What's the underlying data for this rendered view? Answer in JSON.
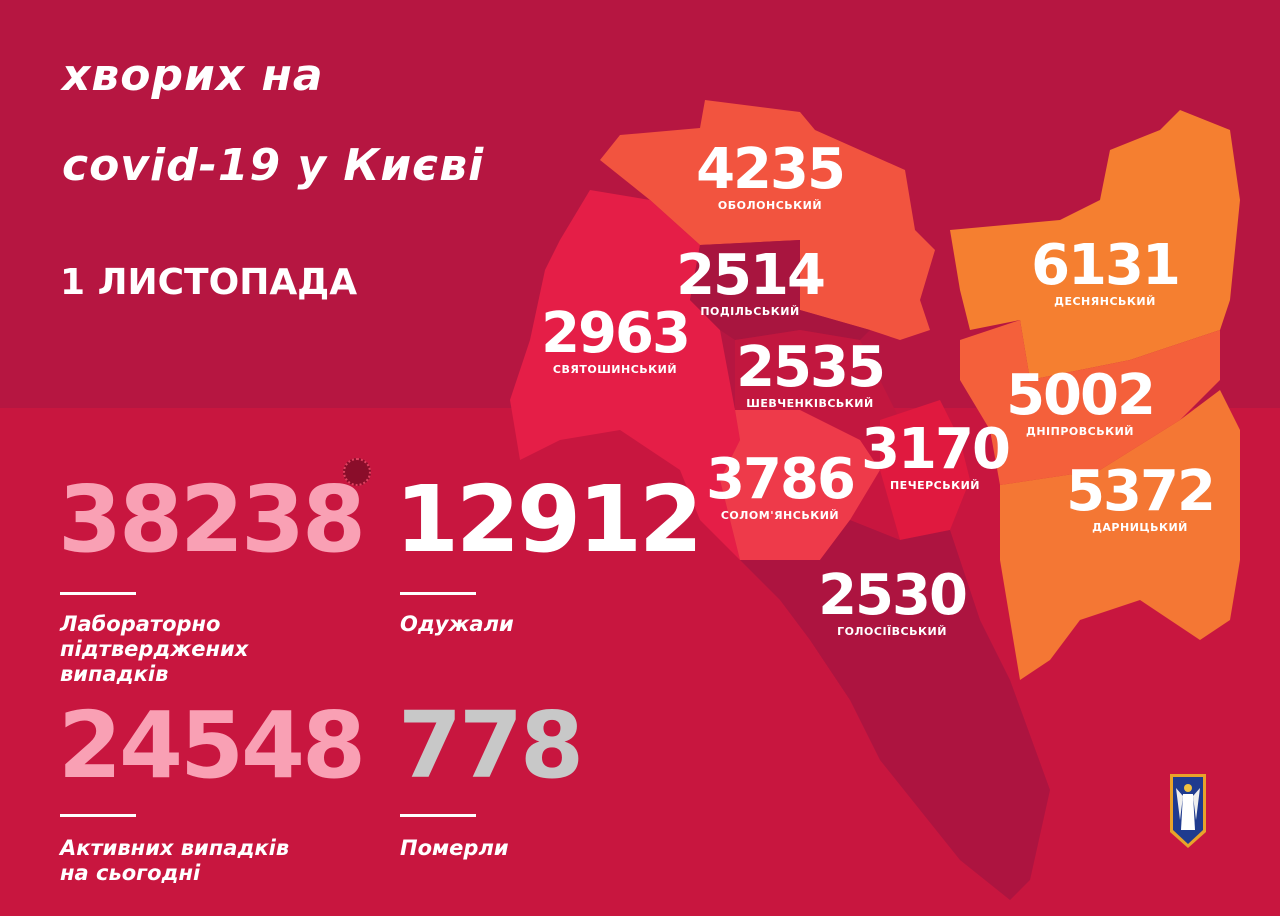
{
  "header": {
    "title_line1": "хворих на",
    "title_line2": "covid-19 у Києві",
    "date": "1 ЛИСТОПАДА"
  },
  "stats": [
    {
      "value": "38238",
      "label_line1": "Лабораторно",
      "label_line2": "підтверджених",
      "label_line3": "випадків",
      "color": "#f9a0b4"
    },
    {
      "value": "12912",
      "label_line1": "Одужали",
      "color": "#ffffff"
    },
    {
      "value": "24548",
      "label_line1": "Активних випадків",
      "label_line2": "на сьогодні",
      "color": "#f9a0b4"
    },
    {
      "value": "778",
      "label_line1": "Померли",
      "color": "#c8c8c8"
    }
  ],
  "districts": [
    {
      "name": "ОБОЛОНСЬКИЙ",
      "value": "4235",
      "color": "#f2543f"
    },
    {
      "name": "ПОДІЛЬСЬКИЙ",
      "value": "2514",
      "color": "#a8153f"
    },
    {
      "name": "СВЯТОШИНСЬКИЙ",
      "value": "2963",
      "color": "#e51e47"
    },
    {
      "name": "ШЕВЧЕНКІВСЬКИЙ",
      "value": "2535",
      "color": "#c2173f"
    },
    {
      "name": "СОЛОМ'ЯНСЬКИЙ",
      "value": "3786",
      "color": "#ee3a4a"
    },
    {
      "name": "ПЕЧЕРСЬКИЙ",
      "value": "3170",
      "color": "#e0193f"
    },
    {
      "name": "ГОЛОСІЇВСЬКИЙ",
      "value": "2530",
      "color": "#ad1440"
    },
    {
      "name": "ДЕСНЯНСЬКИЙ",
      "value": "6131",
      "color": "#f57f30"
    },
    {
      "name": "ДНІПРОВСЬКИЙ",
      "value": "5002",
      "color": "#f4603b"
    },
    {
      "name": "ДАРНИЦЬКИЙ",
      "value": "5372",
      "color": "#f47734"
    }
  ],
  "background": {
    "top": "#b61641",
    "bottom": "#c8163f"
  }
}
